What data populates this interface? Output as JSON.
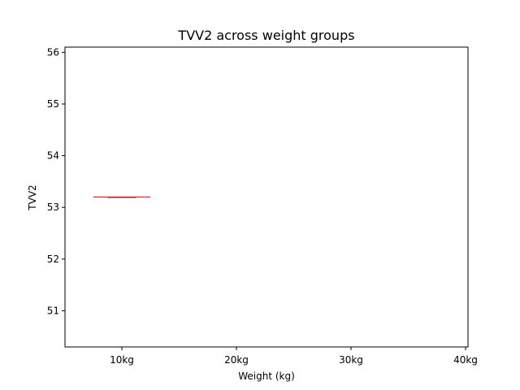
{
  "chart_data": {
    "type": "box",
    "title": "TVV2 across weight groups",
    "xlabel": "Weight (kg)",
    "ylabel": "TVV2",
    "categories": [
      "10kg",
      "20kg",
      "30kg",
      "40kg"
    ],
    "x_tick_labels": [
      "10kg",
      "20kg",
      "30kg",
      "40kg"
    ],
    "y_ticks": [
      51,
      52,
      53,
      54,
      55,
      56
    ],
    "ylim": [
      50.3,
      56.1
    ],
    "boxes": [
      {
        "category": "10kg",
        "min": 53.2,
        "q1": 53.2,
        "median": 53.2,
        "q3": 53.2,
        "max": 53.2
      }
    ],
    "median_color": "#d62728",
    "box_color": "#000000",
    "grid": false
  }
}
